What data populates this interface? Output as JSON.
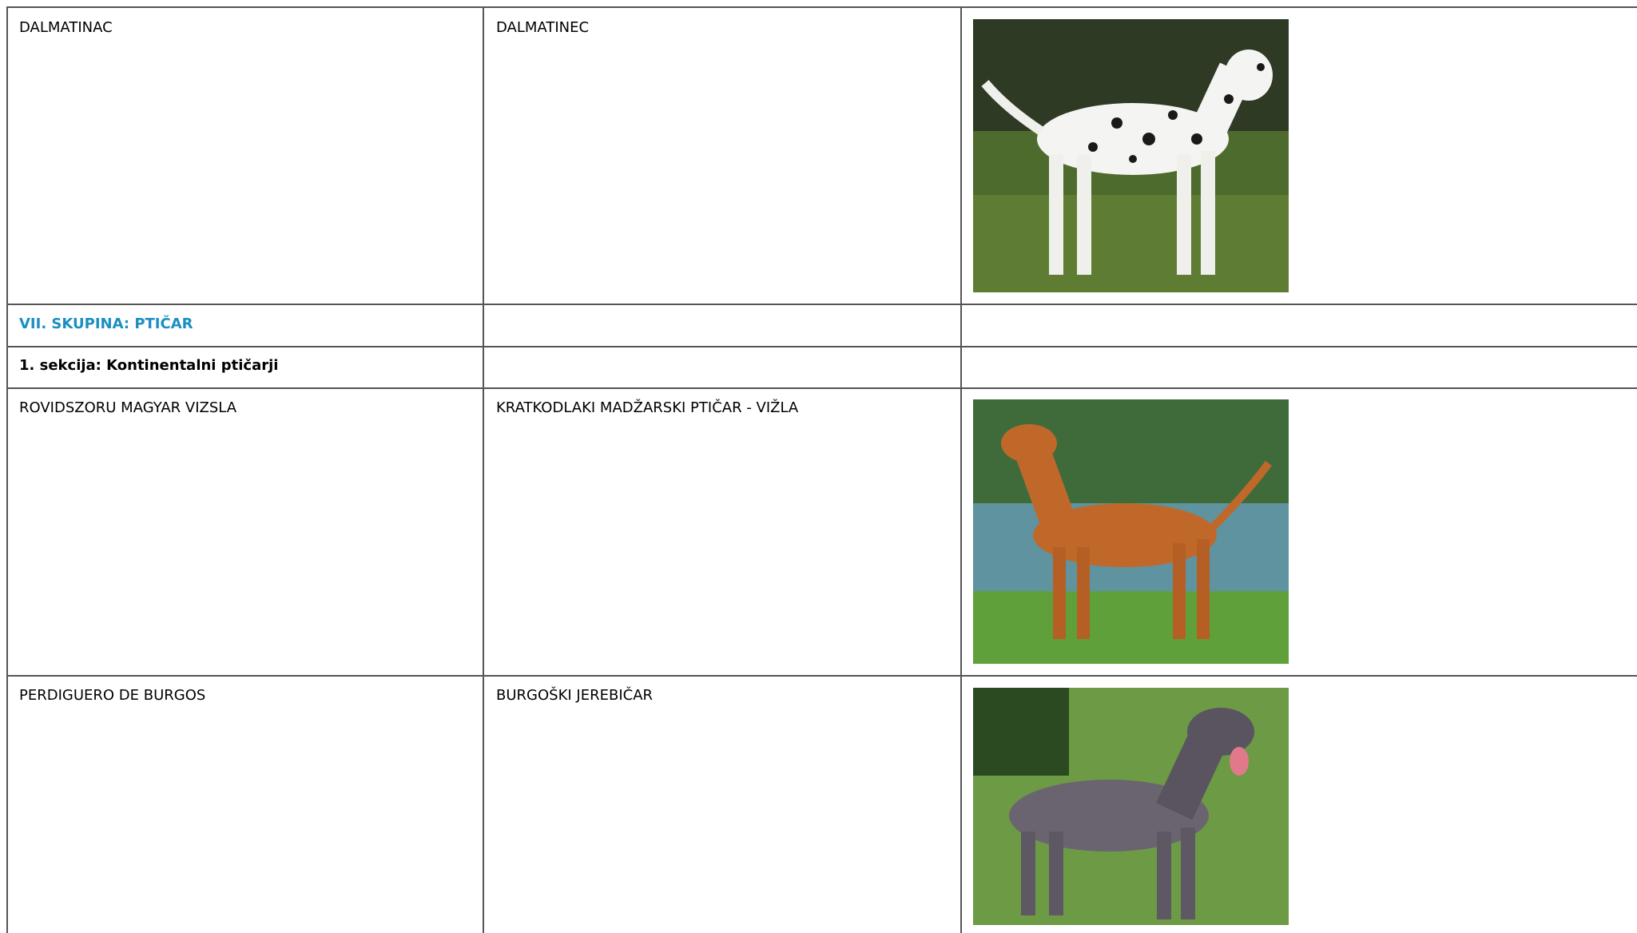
{
  "table": {
    "rows": [
      [
        "DALMATINAC",
        "DALMATINEC"
      ],
      [
        "VII. SKUPINA: PTIČAR",
        ""
      ],
      [
        "1. sekcija: Kontinentalni ptičarji",
        ""
      ],
      [
        "ROVIDSZORU MAGYAR VIZSLA",
        "KRATKODLAKI MADŽARSKI PTIČAR - VIŽLA"
      ],
      [
        "PERDIGUERO DE BURGOS",
        "BURGOŠKI JEREBIČAR"
      ]
    ]
  }
}
